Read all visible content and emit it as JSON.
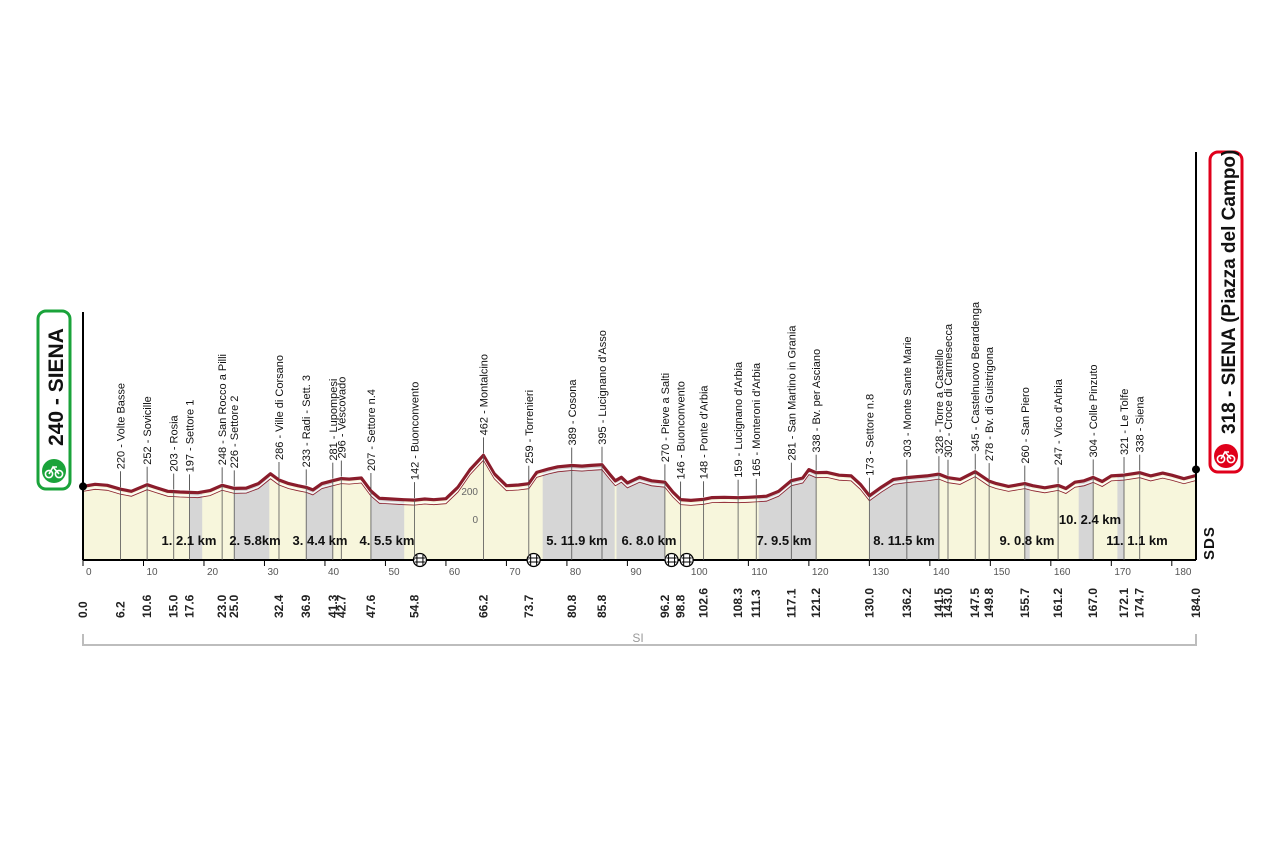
{
  "start": {
    "altitude": "240",
    "name": "SIENA",
    "label": "240 - SIENA",
    "badge_color": "#1aa33a"
  },
  "finish": {
    "altitude": "318",
    "name": "SIENA",
    "note": "(Piazza del Campo)",
    "label": "318 - SIENA (Piazza del Campo)",
    "badge_color": "#e0001b"
  },
  "footer_label": "SI",
  "logo_text": "SDS",
  "colors": {
    "profile_line": "#8a1c2b",
    "sector_fill": "#d6d6d6",
    "base_fill": "#f7f6dc",
    "axis": "#000000"
  },
  "chart_data": {
    "type": "area",
    "xlabel": "",
    "ylabel": "",
    "xlim": [
      0,
      184
    ],
    "ylim": [
      0,
      500
    ],
    "x_ticks": [
      0,
      10,
      20,
      30,
      40,
      50,
      60,
      70,
      80,
      90,
      100,
      110,
      120,
      130,
      140,
      150,
      160,
      170,
      180
    ],
    "y_ticks": [
      0,
      200
    ],
    "profile": [
      [
        0,
        240
      ],
      [
        2,
        255
      ],
      [
        4,
        248
      ],
      [
        6.2,
        220
      ],
      [
        8,
        205
      ],
      [
        10.6,
        252
      ],
      [
        12,
        232
      ],
      [
        14,
        205
      ],
      [
        15,
        203
      ],
      [
        16,
        200
      ],
      [
        17.6,
        197
      ],
      [
        19,
        195
      ],
      [
        21,
        210
      ],
      [
        23,
        248
      ],
      [
        25,
        226
      ],
      [
        27,
        228
      ],
      [
        29,
        260
      ],
      [
        31,
        330
      ],
      [
        32.4,
        286
      ],
      [
        34,
        260
      ],
      [
        35.5,
        245
      ],
      [
        36.9,
        233
      ],
      [
        38,
        215
      ],
      [
        39.5,
        260
      ],
      [
        41.3,
        281
      ],
      [
        42.7,
        296
      ],
      [
        44,
        292
      ],
      [
        46,
        300
      ],
      [
        47.6,
        207
      ],
      [
        49,
        155
      ],
      [
        51,
        150
      ],
      [
        53,
        145
      ],
      [
        54.8,
        142
      ],
      [
        56.5,
        150
      ],
      [
        58,
        145
      ],
      [
        60,
        152
      ],
      [
        62,
        235
      ],
      [
        64,
        360
      ],
      [
        66.2,
        462
      ],
      [
        68,
        330
      ],
      [
        70,
        245
      ],
      [
        72,
        250
      ],
      [
        73.7,
        259
      ],
      [
        75,
        340
      ],
      [
        77,
        365
      ],
      [
        78.5,
        380
      ],
      [
        80.8,
        389
      ],
      [
        82.5,
        385
      ],
      [
        84,
        390
      ],
      [
        85.8,
        395
      ],
      [
        87,
        330
      ],
      [
        88,
        280
      ],
      [
        89,
        305
      ],
      [
        90,
        265
      ],
      [
        92,
        305
      ],
      [
        94,
        280
      ],
      [
        96.2,
        270
      ],
      [
        97.5,
        200
      ],
      [
        98.8,
        146
      ],
      [
        100.5,
        140
      ],
      [
        102.6,
        148
      ],
      [
        104,
        160
      ],
      [
        106,
        162
      ],
      [
        108.3,
        159
      ],
      [
        110,
        162
      ],
      [
        111.3,
        165
      ],
      [
        113,
        170
      ],
      [
        115,
        205
      ],
      [
        117.1,
        281
      ],
      [
        119,
        300
      ],
      [
        120,
        360
      ],
      [
        121.2,
        338
      ],
      [
        123,
        340
      ],
      [
        125,
        320
      ],
      [
        127,
        315
      ],
      [
        128.5,
        255
      ],
      [
        130,
        173
      ],
      [
        132,
        235
      ],
      [
        134,
        290
      ],
      [
        136.2,
        303
      ],
      [
        138,
        310
      ],
      [
        139.5,
        315
      ],
      [
        141.5,
        328
      ],
      [
        143,
        302
      ],
      [
        145,
        290
      ],
      [
        147.5,
        345
      ],
      [
        149.8,
        278
      ],
      [
        151,
        260
      ],
      [
        153,
        240
      ],
      [
        155.7,
        260
      ],
      [
        157,
        245
      ],
      [
        159,
        230
      ],
      [
        161.2,
        247
      ],
      [
        162.5,
        225
      ],
      [
        164,
        270
      ],
      [
        165.5,
        280
      ],
      [
        167,
        304
      ],
      [
        168.5,
        275
      ],
      [
        170,
        315
      ],
      [
        172.1,
        321
      ],
      [
        174.7,
        338
      ],
      [
        176.5,
        315
      ],
      [
        178.5,
        335
      ],
      [
        180,
        320
      ],
      [
        182,
        295
      ],
      [
        184,
        318
      ]
    ],
    "sectors": [
      {
        "label": "1. 2.1 km",
        "from": 17.6,
        "to": 19.7
      },
      {
        "label": "2. 5.8km",
        "from": 25.0,
        "to": 30.8
      },
      {
        "label": "3. 4.4 km",
        "from": 36.9,
        "to": 41.3
      },
      {
        "label": "4. 5.5 km",
        "from": 47.6,
        "to": 53.1
      },
      {
        "label": "5. 11.9 km",
        "from": 76.0,
        "to": 87.9
      },
      {
        "label": "6. 8.0 km",
        "from": 88.2,
        "to": 96.2
      },
      {
        "label": "7. 9.5 km",
        "from": 111.7,
        "to": 121.2
      },
      {
        "label": "8. 11.5 km",
        "from": 130.0,
        "to": 141.5
      },
      {
        "label": "9. 0.8 km",
        "from": 155.7,
        "to": 156.5
      },
      {
        "label": "10. 2.4 km",
        "from": 164.6,
        "to": 167.0
      },
      {
        "label": "11. 1.1 km",
        "from": 171.0,
        "to": 172.1
      }
    ],
    "landmarks": [
      {
        "km": "6.2",
        "label": "220 - Volte Basse"
      },
      {
        "km": "10.6",
        "label": "252 - Sovicille"
      },
      {
        "km": "15.0",
        "label": "203 - Rosia"
      },
      {
        "km": "17.6",
        "label": "197 - Settore 1"
      },
      {
        "km": "23.0",
        "label": "248 - San Rocco a Pilli"
      },
      {
        "km": "25.0",
        "label": "226 - Settore 2"
      },
      {
        "km": "32.4",
        "label": "286 - Ville di Corsano"
      },
      {
        "km": "36.9",
        "label": "233 - Radi - Sett. 3"
      },
      {
        "km": "41.3",
        "label": "281 - Lupompesi"
      },
      {
        "km": "42.7",
        "label": "296 - Vescovado"
      },
      {
        "km": "47.6",
        "label": "207 - Settore n.4"
      },
      {
        "km": "54.8",
        "label": "142 - Buonconvento"
      },
      {
        "km": "66.2",
        "label": "462 - Montalcino"
      },
      {
        "km": "73.7",
        "label": "259 - Torrenieri"
      },
      {
        "km": "80.8",
        "label": "389 - Cosona"
      },
      {
        "km": "85.8",
        "label": "395 - Lucignano d'Asso"
      },
      {
        "km": "96.2",
        "label": "270 - Pieve a Salti"
      },
      {
        "km": "98.8",
        "label": "146 - Buonconvento"
      },
      {
        "km": "102.6",
        "label": "148 - Ponte d'Arbia"
      },
      {
        "km": "108.3",
        "label": "159 - Lucignano d'Arbia"
      },
      {
        "km": "111.3",
        "label": "165 - Monteroni d'Arbia"
      },
      {
        "km": "117.1",
        "label": "281 - San Martino in Grania"
      },
      {
        "km": "121.2",
        "label": "338 - Bv. per Asciano"
      },
      {
        "km": "130.0",
        "label": "173 - Settore n.8"
      },
      {
        "km": "136.2",
        "label": "303 - Monte Sante Marie"
      },
      {
        "km": "141.5",
        "label": "328 - Torre a Castello"
      },
      {
        "km": "143.0",
        "label": "302 - Croce di Carmesecca"
      },
      {
        "km": "147.5",
        "label": "345 - Castelnuovo Berardenga"
      },
      {
        "km": "149.8",
        "label": "278 - Bv. di Guistrigona"
      },
      {
        "km": "155.7",
        "label": "260 - San Piero"
      },
      {
        "km": "161.2",
        "label": "247 - Vico d'Arbia"
      },
      {
        "km": "167.0",
        "label": "304 - Colle Pinzuto"
      },
      {
        "km": "172.1",
        "label": "321 - Le Tolfe"
      },
      {
        "km": "174.7",
        "label": "338 - Siena"
      }
    ],
    "start_km": "0.0",
    "finish_km": "184.0",
    "railway_crossings": [
      55.7,
      74.5,
      97.3,
      99.8
    ]
  }
}
